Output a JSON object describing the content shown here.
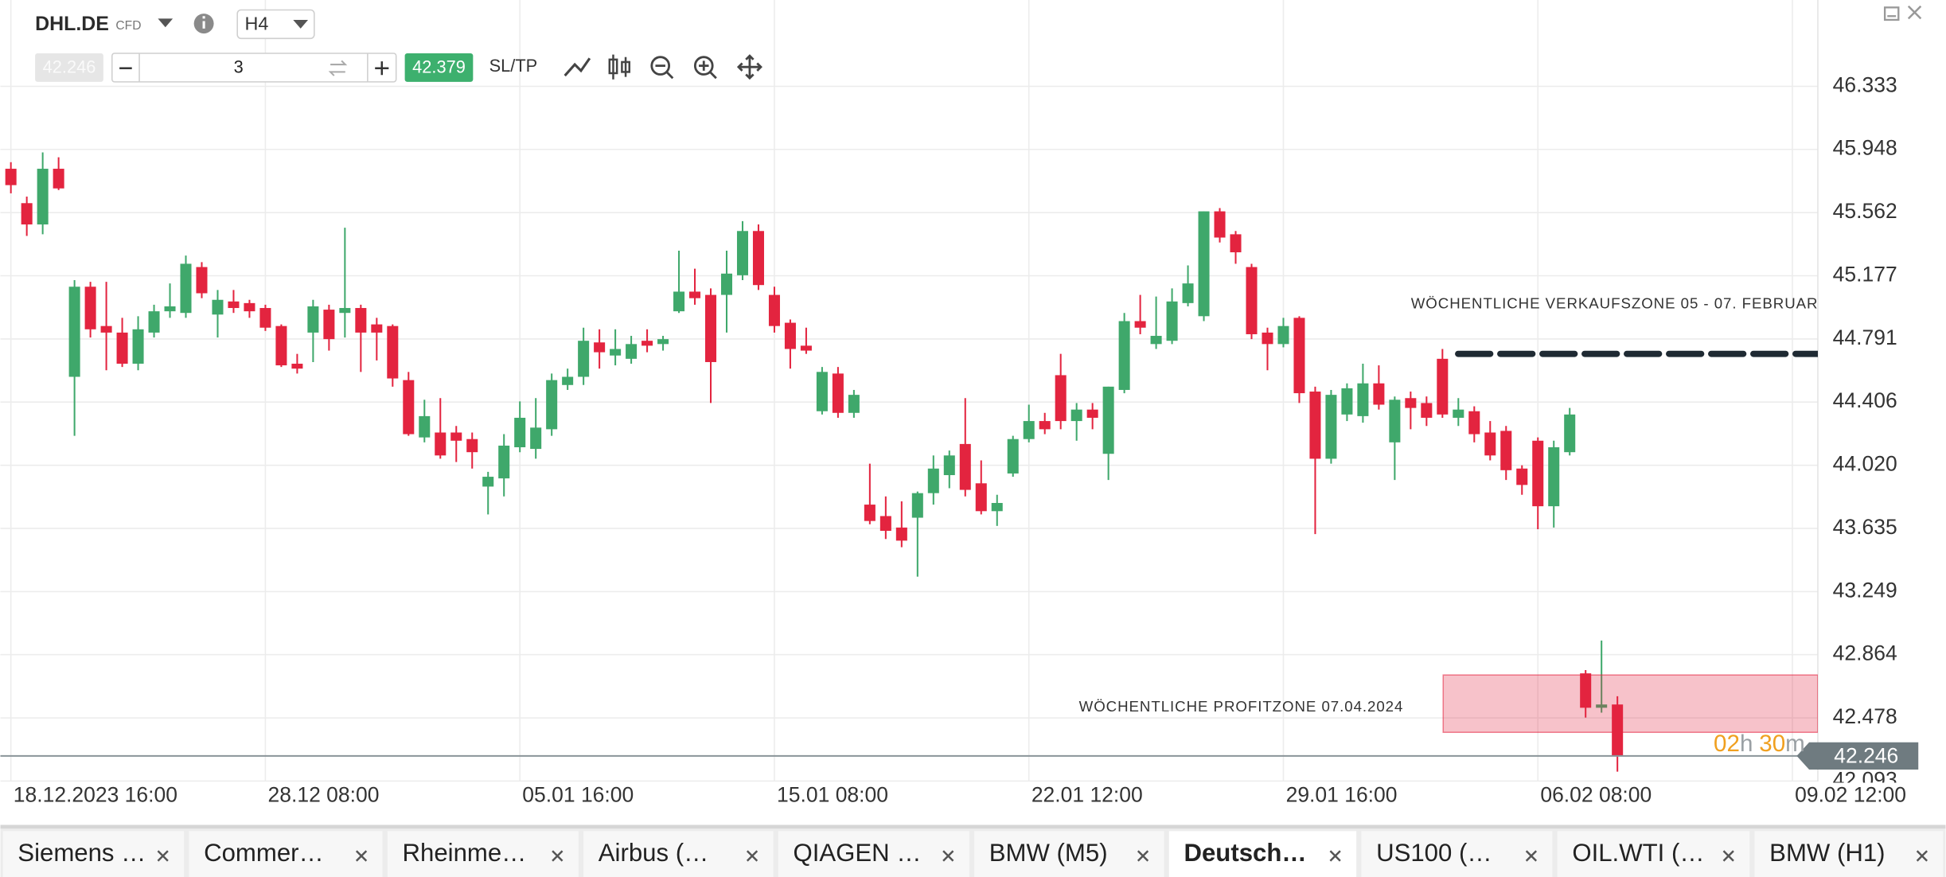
{
  "toolbar": {
    "symbol": "DHL.DE",
    "symbol_type": "CFD",
    "timeframe": "H4",
    "sell_price": "42.246",
    "quantity": "3",
    "buy_price": "42.379",
    "sltp": "SL/TP"
  },
  "chart_data": {
    "type": "candlestick",
    "up_color": "#3fa86b",
    "down_color": "#e3243f",
    "ohlc": [
      [
        45.83,
        45.87,
        45.68,
        45.73
      ],
      [
        45.62,
        45.66,
        45.42,
        45.49
      ],
      [
        45.49,
        45.93,
        45.43,
        45.83
      ],
      [
        45.83,
        45.9,
        45.7,
        45.71
      ],
      [
        44.56,
        45.15,
        44.2,
        45.11
      ],
      [
        45.11,
        45.14,
        44.8,
        44.85
      ],
      [
        44.87,
        45.14,
        44.6,
        44.83
      ],
      [
        44.83,
        44.92,
        44.62,
        44.64
      ],
      [
        44.64,
        44.93,
        44.6,
        44.85
      ],
      [
        44.83,
        45.0,
        44.8,
        44.96
      ],
      [
        44.96,
        45.13,
        44.92,
        44.99
      ],
      [
        44.95,
        45.3,
        44.92,
        45.25
      ],
      [
        45.23,
        45.26,
        45.04,
        45.07
      ],
      [
        44.94,
        45.09,
        44.8,
        45.03
      ],
      [
        45.02,
        45.09,
        44.95,
        44.98
      ],
      [
        45.01,
        45.03,
        44.92,
        44.96
      ],
      [
        44.98,
        45.0,
        44.84,
        44.86
      ],
      [
        44.87,
        44.88,
        44.62,
        44.63
      ],
      [
        44.64,
        44.7,
        44.58,
        44.61
      ],
      [
        44.83,
        45.03,
        44.65,
        44.99
      ],
      [
        44.97,
        45.0,
        44.72,
        44.79
      ],
      [
        44.95,
        45.47,
        44.8,
        44.98
      ],
      [
        44.98,
        45.0,
        44.59,
        44.83
      ],
      [
        44.88,
        44.92,
        44.66,
        44.83
      ],
      [
        44.87,
        44.88,
        44.5,
        44.55
      ],
      [
        44.54,
        44.59,
        44.2,
        44.21
      ],
      [
        44.19,
        44.42,
        44.16,
        44.32
      ],
      [
        44.22,
        44.43,
        44.06,
        44.08
      ],
      [
        44.22,
        44.26,
        44.04,
        44.17
      ],
      [
        44.18,
        44.22,
        44.0,
        44.1
      ],
      [
        43.89,
        43.98,
        43.72,
        43.95
      ],
      [
        43.94,
        44.21,
        43.83,
        44.14
      ],
      [
        44.13,
        44.41,
        44.1,
        44.31
      ],
      [
        44.12,
        44.43,
        44.06,
        44.25
      ],
      [
        44.24,
        44.58,
        44.2,
        44.54
      ],
      [
        44.51,
        44.61,
        44.48,
        44.56
      ],
      [
        44.56,
        44.86,
        44.51,
        44.78
      ],
      [
        44.77,
        44.85,
        44.61,
        44.71
      ],
      [
        44.69,
        44.85,
        44.63,
        44.73
      ],
      [
        44.67,
        44.81,
        44.64,
        44.76
      ],
      [
        44.78,
        44.85,
        44.71,
        44.75
      ],
      [
        44.76,
        44.81,
        44.72,
        44.79
      ],
      [
        44.96,
        45.33,
        44.95,
        45.08
      ],
      [
        45.08,
        45.22,
        45.0,
        45.04
      ],
      [
        45.06,
        45.1,
        44.4,
        44.65
      ],
      [
        45.06,
        45.33,
        44.83,
        45.19
      ],
      [
        45.18,
        45.51,
        45.15,
        45.45
      ],
      [
        45.45,
        45.49,
        45.09,
        45.12
      ],
      [
        45.06,
        45.11,
        44.83,
        44.87
      ],
      [
        44.89,
        44.91,
        44.61,
        44.73
      ],
      [
        44.75,
        44.86,
        44.7,
        44.72
      ],
      [
        44.35,
        44.62,
        44.33,
        44.59
      ],
      [
        44.58,
        44.62,
        44.31,
        44.34
      ],
      [
        44.34,
        44.48,
        44.31,
        44.45
      ],
      [
        43.78,
        44.03,
        43.66,
        43.68
      ],
      [
        43.71,
        43.83,
        43.57,
        43.62
      ],
      [
        43.64,
        43.8,
        43.52,
        43.56
      ],
      [
        43.7,
        43.86,
        43.34,
        43.85
      ],
      [
        43.85,
        44.08,
        43.78,
        44.0
      ],
      [
        43.96,
        44.11,
        43.88,
        44.08
      ],
      [
        44.15,
        44.43,
        43.83,
        43.87
      ],
      [
        43.91,
        44.05,
        43.72,
        43.74
      ],
      [
        43.74,
        43.84,
        43.65,
        43.79
      ],
      [
        43.97,
        44.2,
        43.95,
        44.18
      ],
      [
        44.18,
        44.39,
        44.16,
        44.29
      ],
      [
        44.29,
        44.34,
        44.21,
        44.24
      ],
      [
        44.57,
        44.7,
        44.24,
        44.29
      ],
      [
        44.29,
        44.4,
        44.17,
        44.36
      ],
      [
        44.36,
        44.4,
        44.24,
        44.31
      ],
      [
        44.09,
        44.5,
        43.93,
        44.5
      ],
      [
        44.48,
        44.95,
        44.46,
        44.9
      ],
      [
        44.9,
        45.06,
        44.82,
        44.86
      ],
      [
        44.76,
        45.05,
        44.73,
        44.81
      ],
      [
        44.78,
        45.1,
        44.76,
        45.02
      ],
      [
        45.01,
        45.24,
        44.99,
        45.13
      ],
      [
        44.93,
        45.57,
        44.9,
        45.57
      ],
      [
        45.57,
        45.59,
        45.38,
        45.41
      ],
      [
        45.43,
        45.45,
        45.25,
        45.32
      ],
      [
        45.23,
        45.25,
        44.79,
        44.82
      ],
      [
        44.83,
        44.86,
        44.6,
        44.76
      ],
      [
        44.76,
        44.92,
        44.74,
        44.87
      ],
      [
        44.92,
        44.93,
        44.4,
        44.46
      ],
      [
        44.47,
        44.5,
        43.6,
        44.06
      ],
      [
        44.06,
        44.48,
        44.03,
        44.45
      ],
      [
        44.33,
        44.52,
        44.29,
        44.49
      ],
      [
        44.32,
        44.64,
        44.28,
        44.52
      ],
      [
        44.52,
        44.63,
        44.36,
        44.39
      ],
      [
        44.16,
        44.44,
        43.93,
        44.42
      ],
      [
        44.43,
        44.47,
        44.24,
        44.37
      ],
      [
        44.4,
        44.44,
        44.26,
        44.31
      ],
      [
        44.67,
        44.73,
        44.31,
        44.33
      ],
      [
        44.31,
        44.43,
        44.26,
        44.36
      ],
      [
        44.35,
        44.38,
        44.16,
        44.21
      ],
      [
        44.22,
        44.29,
        44.05,
        44.08
      ],
      [
        44.23,
        44.26,
        43.93,
        43.99
      ],
      [
        44.0,
        44.02,
        43.84,
        43.9
      ],
      [
        44.17,
        44.19,
        43.63,
        43.77
      ],
      [
        43.77,
        44.17,
        43.64,
        44.13
      ],
      [
        44.1,
        44.37,
        44.08,
        44.33
      ],
      [
        42.75,
        42.77,
        42.48,
        42.54
      ],
      [
        42.54,
        42.95,
        42.51,
        42.56
      ],
      [
        42.56,
        42.61,
        42.15,
        42.246
      ]
    ],
    "xlim": [
      -0.66,
      113.6
    ],
    "xticks": [
      {
        "value": 0,
        "label": "18.12.2023 16:00"
      },
      {
        "value": 16,
        "label": "28.12 08:00"
      },
      {
        "value": 32,
        "label": "05.01 16:00"
      },
      {
        "value": 48,
        "label": "15.01 08:00"
      },
      {
        "value": 64,
        "label": "22.01 12:00"
      },
      {
        "value": 80,
        "label": "29.01 16:00"
      },
      {
        "value": 96,
        "label": "06.02 08:00"
      },
      {
        "value": 112,
        "label": "09.02 12:00"
      }
    ],
    "ylim": [
      42.09,
      46.86
    ],
    "yticks": [
      46.333,
      45.948,
      45.562,
      45.177,
      44.791,
      44.406,
      {
        "value": 44.02,
        "label": "44.020"
      },
      43.635,
      43.249,
      42.864,
      42.478,
      42.093
    ],
    "grid": true,
    "current_price": 42.246,
    "countdown": [
      "02",
      "h",
      "30",
      "m"
    ],
    "annotations": [
      {
        "text": "WÖCHENTLICHE VERKAUFSZONE 05 - 07. FEBRUAR",
        "level": 44.7
      },
      {
        "text": "WÖCHENTLICHE PROFITZONE 07.04.2024",
        "range": [
          42.39,
          42.74
        ]
      }
    ]
  },
  "tabs": [
    "Siemens …",
    "Commer…",
    "Rheinme…",
    "Airbus (…",
    "QIAGEN …",
    "BMW (M5)",
    "Deutsch…",
    "US100 (…",
    "OIL.WTI (…",
    "BMW (H1)"
  ],
  "active_tab": 6
}
